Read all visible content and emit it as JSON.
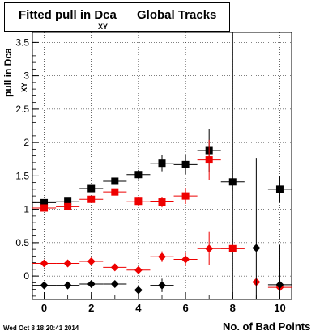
{
  "chart_data": {
    "type": "scatter",
    "title": "Fitted pull in Dca",
    "title_subscript": "XY",
    "title_suffix": "Global Tracks",
    "xlabel": "No. of Bad Points",
    "ylabel": "pull in Dca",
    "ylabel_subscript": "XY",
    "xlim": [
      -0.5,
      10.5
    ],
    "ylim": [
      -0.35,
      3.65
    ],
    "x_ticks": [
      "0",
      "2",
      "4",
      "6",
      "8",
      "10"
    ],
    "y_ticks": [
      "0",
      "0.5",
      "1",
      "1.5",
      "2",
      "2.5",
      "3",
      "3.5"
    ],
    "grid": true,
    "series": [
      {
        "marker": "square",
        "color": "#000000",
        "points": [
          {
            "x": 0,
            "y": 1.1,
            "yerr": 0.05
          },
          {
            "x": 1,
            "y": 1.12,
            "yerr": 0.05
          },
          {
            "x": 2,
            "y": 1.31,
            "yerr": 0.05
          },
          {
            "x": 3,
            "y": 1.42,
            "yerr": 0.05
          },
          {
            "x": 4,
            "y": 1.52,
            "yerr": 0.07
          },
          {
            "x": 5,
            "y": 1.69,
            "yerr": 0.12
          },
          {
            "x": 6,
            "y": 1.67,
            "yerr": 0.15
          },
          {
            "x": 7,
            "y": 1.88,
            "yerr": 0.32
          },
          {
            "x": 8,
            "y": 1.41,
            "yerr": 3.0
          },
          {
            "x": 10,
            "y": 1.3,
            "yerr": 0.2
          }
        ]
      },
      {
        "marker": "square",
        "color": "#ee0000",
        "points": [
          {
            "x": 0,
            "y": 1.02,
            "yerr": 0.04
          },
          {
            "x": 1,
            "y": 1.04,
            "yerr": 0.04
          },
          {
            "x": 2,
            "y": 1.15,
            "yerr": 0.04
          },
          {
            "x": 3,
            "y": 1.26,
            "yerr": 0.05
          },
          {
            "x": 4,
            "y": 1.12,
            "yerr": 0.07
          },
          {
            "x": 5,
            "y": 1.11,
            "yerr": 0.08
          },
          {
            "x": 6,
            "y": 1.2,
            "yerr": 0.12
          },
          {
            "x": 7,
            "y": 1.74,
            "yerr": 0.3
          },
          {
            "x": 8,
            "y": 0.41,
            "yerr": 0.0
          }
        ]
      },
      {
        "marker": "diamond",
        "color": "#ee0000",
        "points": [
          {
            "x": 0,
            "y": 0.19,
            "yerr": 0.03
          },
          {
            "x": 1,
            "y": 0.19,
            "yerr": 0.03
          },
          {
            "x": 2,
            "y": 0.22,
            "yerr": 0.03
          },
          {
            "x": 3,
            "y": 0.13,
            "yerr": 0.04
          },
          {
            "x": 4,
            "y": 0.09,
            "yerr": 0.05
          },
          {
            "x": 5,
            "y": 0.29,
            "yerr": 0.08
          },
          {
            "x": 6,
            "y": 0.25,
            "yerr": 0.1
          },
          {
            "x": 7,
            "y": 0.41,
            "yerr": 0.25
          },
          {
            "x": 8,
            "y": 0.41,
            "yerr": 0.0
          },
          {
            "x": 9,
            "y": -0.09,
            "yerr": 0.0
          },
          {
            "x": 10,
            "y": -0.17,
            "yerr": 0.05
          }
        ]
      },
      {
        "marker": "diamond",
        "color": "#000000",
        "points": [
          {
            "x": 0,
            "y": -0.14,
            "yerr": 0.03
          },
          {
            "x": 1,
            "y": -0.14,
            "yerr": 0.03
          },
          {
            "x": 2,
            "y": -0.12,
            "yerr": 0.03
          },
          {
            "x": 3,
            "y": -0.12,
            "yerr": 0.04
          },
          {
            "x": 4,
            "y": -0.21,
            "yerr": 0.06
          },
          {
            "x": 5,
            "y": -0.14,
            "yerr": 0.1
          },
          {
            "x": 9,
            "y": 0.42,
            "yerr": 1.35
          },
          {
            "x": 10,
            "y": -0.13,
            "yerr": 0.6
          }
        ]
      }
    ]
  },
  "footer": {
    "timestamp": "Wed Oct  8 18:20:41 2014"
  }
}
